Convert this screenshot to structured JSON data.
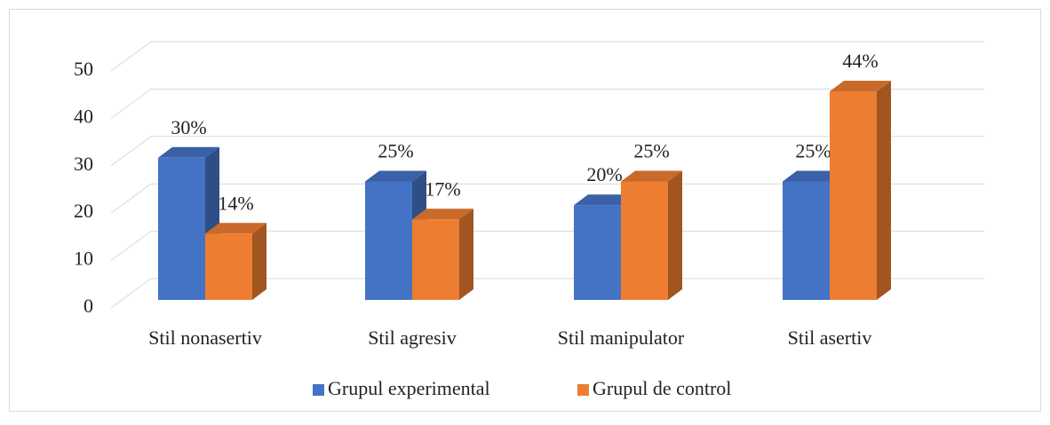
{
  "chart_data": {
    "type": "bar3d",
    "categories": [
      "Stil nonasertiv",
      "Stil agresiv",
      "Stil manipulator",
      "Stil asertiv"
    ],
    "series": [
      {
        "name": "Grupul experimental",
        "color": "#4472c4",
        "values": [
          30,
          25,
          20,
          25
        ],
        "value_labels": [
          "30%",
          "25%",
          "20%",
          "25%"
        ]
      },
      {
        "name": "Grupul de control",
        "color": "#ed7d31",
        "values": [
          14,
          17,
          25,
          44
        ],
        "value_labels": [
          "14%",
          "17%",
          "25%",
          "44%"
        ]
      }
    ],
    "ylim": [
      0,
      50
    ],
    "yticks": [
      0,
      10,
      20,
      30,
      40,
      50
    ],
    "grid": true,
    "legend": "bottom"
  }
}
